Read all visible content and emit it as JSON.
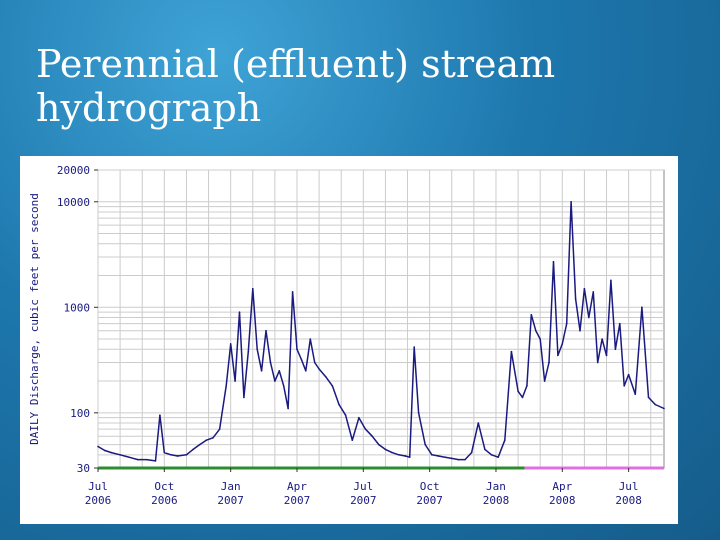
{
  "slide": {
    "title": "Perennial (effluent) stream hydrograph"
  },
  "colors": {
    "background": "#1d77ad",
    "series_line": "#1a1a80",
    "bar_green": "#2e8b2e",
    "bar_pink": "#e070e0",
    "grid": "#cccccc"
  },
  "chart_data": {
    "type": "line",
    "title": "",
    "ylabel": "DAILY Discharge, cubic feet per second",
    "xlabel": "",
    "yscale": "log",
    "ylim": [
      30,
      20000
    ],
    "xlim": [
      0,
      25.6
    ],
    "y_ticks": [
      30,
      100,
      1000,
      10000,
      20000
    ],
    "y_tick_labels": [
      "30",
      "100",
      "1000",
      "10000",
      "20000"
    ],
    "x_ticks": [
      0,
      3,
      6,
      9,
      12,
      15,
      18,
      21,
      24
    ],
    "x_tick_labels": [
      "Jul\n2006",
      "Oct\n2006",
      "Jan\n2007",
      "Apr\n2007",
      "Jul\n2007",
      "Oct\n2007",
      "Jan\n2008",
      "Apr\n2008",
      "Jul\n2008"
    ],
    "grid": true,
    "series": [
      {
        "x": [
          0,
          0.3,
          0.6,
          1,
          1.4,
          1.8,
          2.2,
          2.6,
          2.8,
          3.0,
          3.3,
          3.6,
          4.0,
          4.3,
          4.6,
          4.9,
          5.2,
          5.5,
          5.8,
          6.0,
          6.2,
          6.4,
          6.6,
          6.8,
          7.0,
          7.2,
          7.4,
          7.6,
          7.8,
          8.0,
          8.2,
          8.4,
          8.6,
          8.8,
          9.0,
          9.2,
          9.4,
          9.6,
          9.8,
          10.0,
          10.3,
          10.6,
          10.9,
          11.2,
          11.5,
          11.8,
          12.1,
          12.4,
          12.7,
          13.0,
          13.3,
          13.6,
          13.9,
          14.1,
          14.3,
          14.5,
          14.8,
          15.1,
          15.4,
          15.7,
          16.0,
          16.3,
          16.6,
          16.9,
          17.2,
          17.5,
          17.8,
          18.1,
          18.4,
          18.7,
          19.0,
          19.2,
          19.4,
          19.6,
          19.8,
          20.0,
          20.2,
          20.4,
          20.6,
          20.8,
          21.0,
          21.2,
          21.4,
          21.6,
          21.8,
          22.0,
          22.2,
          22.4,
          22.6,
          22.8,
          23.0,
          23.2,
          23.4,
          23.6,
          23.8,
          24.0,
          24.3,
          24.6,
          24.9,
          25.2,
          25.6
        ],
        "y": [
          48,
          44,
          42,
          40,
          38,
          36,
          36,
          35,
          95,
          42,
          40,
          39,
          40,
          45,
          50,
          55,
          58,
          70,
          180,
          450,
          200,
          900,
          140,
          380,
          1500,
          400,
          250,
          600,
          300,
          200,
          250,
          180,
          110,
          1400,
          400,
          320,
          250,
          500,
          300,
          260,
          220,
          180,
          120,
          95,
          55,
          90,
          70,
          60,
          50,
          45,
          42,
          40,
          39,
          38,
          420,
          100,
          50,
          40,
          39,
          38,
          37,
          36,
          36,
          42,
          80,
          45,
          40,
          38,
          55,
          380,
          160,
          140,
          180,
          850,
          600,
          500,
          200,
          300,
          2700,
          350,
          450,
          700,
          10000,
          1200,
          600,
          1500,
          800,
          1400,
          300,
          500,
          350,
          1800,
          400,
          700,
          180,
          230,
          150,
          1000,
          140,
          120,
          110
        ]
      }
    ],
    "status_bars": [
      {
        "from": 0,
        "to": 19.3,
        "color": "#2e8b2e"
      },
      {
        "from": 19.3,
        "to": 25.6,
        "color": "#e070e0"
      }
    ]
  }
}
